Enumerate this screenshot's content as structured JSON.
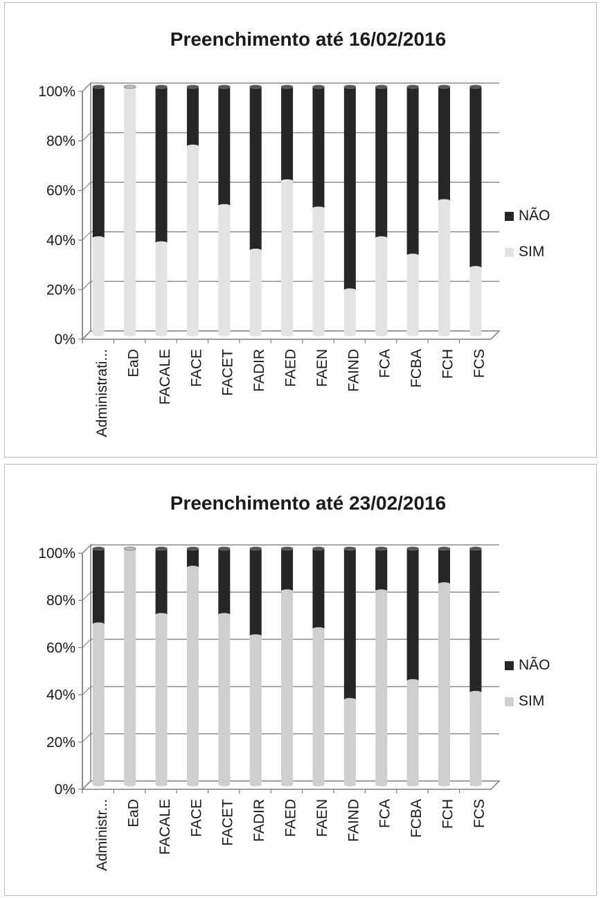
{
  "colors": {
    "nao": "#262626",
    "sim_chart1": "#e3e3e3",
    "sim_chart2": "#cfcfcf",
    "axis": "#7f7f7f",
    "grid": "#8c8c8c",
    "text": "#1a1a1a"
  },
  "chart_data": [
    {
      "type": "bar",
      "stacked": "percent",
      "title": "Preenchimento até 16/02/2016",
      "categories": [
        "Administrati...",
        "EaD",
        "FACALE",
        "FACE",
        "FACET",
        "FADIR",
        "FAED",
        "FAEN",
        "FAIND",
        "FCA",
        "FCBA",
        "FCH",
        "FCS"
      ],
      "series": [
        {
          "name": "SIM",
          "values": [
            39,
            100,
            37,
            76,
            52,
            34,
            62,
            51,
            18,
            39,
            32,
            54,
            27
          ]
        },
        {
          "name": "NÃO",
          "values": [
            61,
            0,
            63,
            24,
            48,
            66,
            38,
            49,
            82,
            61,
            68,
            46,
            73
          ]
        }
      ],
      "y_ticks": [
        "0%",
        "20%",
        "40%",
        "60%",
        "80%",
        "100%"
      ],
      "ylim": [
        0,
        100
      ],
      "grid": true,
      "legend": {
        "position": "right",
        "entries": [
          "NÃO",
          "SIM"
        ]
      }
    },
    {
      "type": "bar",
      "stacked": "percent",
      "title": "Preenchimento até 23/02/2016",
      "categories": [
        "Administr...",
        "EaD",
        "FACALE",
        "FACE",
        "FACET",
        "FADIR",
        "FAED",
        "FAEN",
        "FAIND",
        "FCA",
        "FCBA",
        "FCH",
        "FCS"
      ],
      "series": [
        {
          "name": "SIM",
          "values": [
            68,
            100,
            72,
            92,
            72,
            63,
            82,
            66,
            36,
            82,
            44,
            85,
            39
          ]
        },
        {
          "name": "NÃO",
          "values": [
            32,
            0,
            28,
            8,
            28,
            37,
            18,
            34,
            64,
            18,
            56,
            15,
            61
          ]
        }
      ],
      "y_ticks": [
        "0%",
        "20%",
        "40%",
        "60%",
        "80%",
        "100%"
      ],
      "ylim": [
        0,
        100
      ],
      "grid": true,
      "legend": {
        "position": "right",
        "entries": [
          "NÃO",
          "SIM"
        ]
      }
    }
  ]
}
